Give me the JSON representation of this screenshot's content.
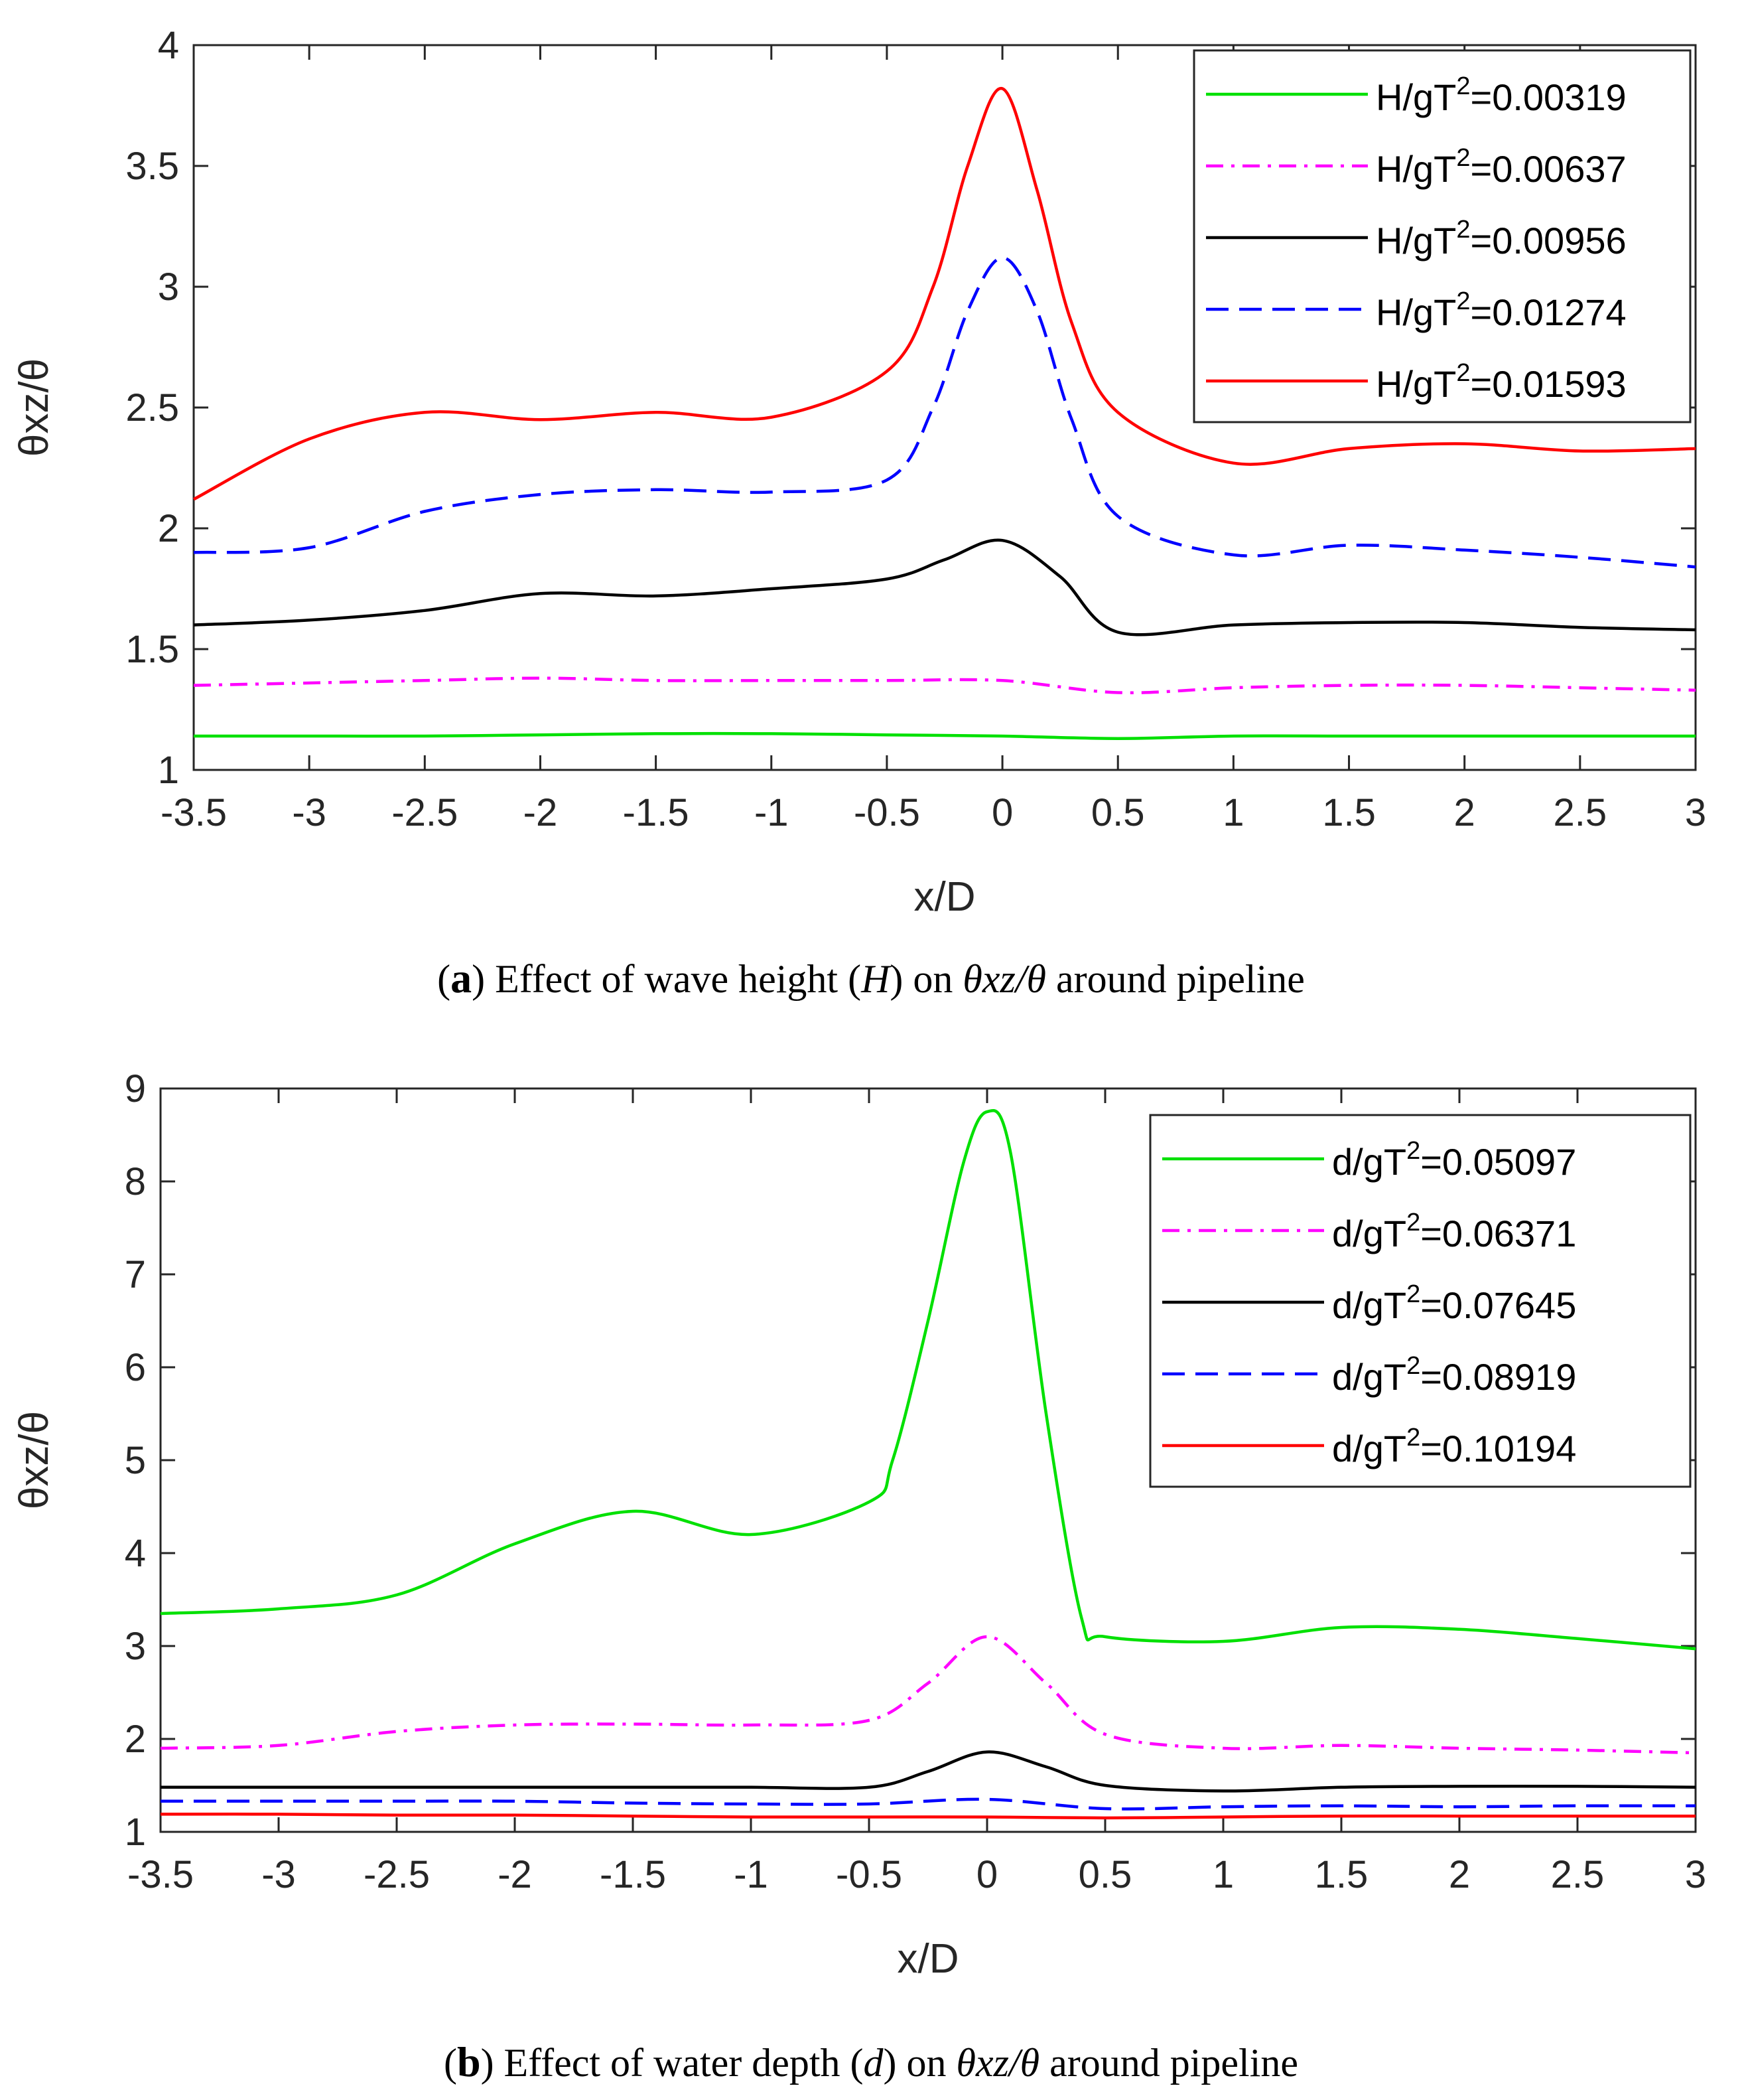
{
  "chart_data": [
    {
      "type": "line",
      "panel": "a",
      "caption": {
        "label": "a",
        "prefix": "Effect of wave height (",
        "variable": "H",
        "middle": ") on ",
        "quantity": "θxz/θ",
        "suffix": " around pipeline"
      },
      "xlabel": "x/D",
      "ylabel": "θxz/θ",
      "xlim": [
        -3.5,
        3
      ],
      "ylim": [
        1,
        4
      ],
      "xticks": [
        "-3.5",
        "-3",
        "-2.5",
        "-2",
        "-1.5",
        "-1",
        "-0.5",
        "0",
        "0.5",
        "1",
        "1.5",
        "2",
        "2.5",
        "3"
      ],
      "yticks": [
        "1",
        "1.5",
        "2",
        "2.5",
        "3",
        "3.5",
        "4"
      ],
      "legend_position": "top-right",
      "series": [
        {
          "name": "H/gT²=0.00319",
          "label_base": "H/gT",
          "label_sup": "2",
          "label_value": "=0.00319",
          "color": "#00e000",
          "style": "solid",
          "x": [
            -3.5,
            -3,
            -2.5,
            -2,
            -1.5,
            -1,
            -0.5,
            0,
            0.5,
            1,
            1.5,
            2,
            2.5,
            3
          ],
          "y": [
            1.14,
            1.14,
            1.14,
            1.145,
            1.15,
            1.15,
            1.145,
            1.14,
            1.13,
            1.14,
            1.14,
            1.14,
            1.14,
            1.14
          ]
        },
        {
          "name": "H/gT²=0.00637",
          "label_base": "H/gT",
          "label_sup": "2",
          "label_value": "=0.00637",
          "color": "#ff00ff",
          "style": "dashdot",
          "x": [
            -3.5,
            -3,
            -2.5,
            -2,
            -1.5,
            -1,
            -0.5,
            0,
            0.5,
            1,
            1.5,
            2,
            2.5,
            3
          ],
          "y": [
            1.35,
            1.36,
            1.37,
            1.38,
            1.37,
            1.37,
            1.37,
            1.37,
            1.32,
            1.34,
            1.35,
            1.35,
            1.34,
            1.33
          ]
        },
        {
          "name": "H/gT²=0.00956",
          "label_base": "H/gT",
          "label_sup": "2",
          "label_value": "=0.00956",
          "color": "#000000",
          "style": "solid",
          "x": [
            -3.5,
            -3,
            -2.5,
            -2,
            -1.5,
            -1,
            -0.5,
            -0.25,
            0,
            0.25,
            0.5,
            1,
            1.5,
            2,
            2.5,
            3
          ],
          "y": [
            1.6,
            1.62,
            1.66,
            1.73,
            1.72,
            1.75,
            1.79,
            1.87,
            1.95,
            1.8,
            1.57,
            1.6,
            1.61,
            1.61,
            1.59,
            1.58
          ]
        },
        {
          "name": "H/gT²=0.01274",
          "label_base": "H/gT",
          "label_sup": "2",
          "label_value": "=0.01274",
          "color": "#0000ff",
          "style": "dashed",
          "x": [
            -3.5,
            -3,
            -2.5,
            -2,
            -1.5,
            -1,
            -0.5,
            -0.3,
            -0.15,
            0,
            0.15,
            0.3,
            0.5,
            1,
            1.5,
            2,
            2.5,
            3
          ],
          "y": [
            1.9,
            1.92,
            2.07,
            2.14,
            2.16,
            2.15,
            2.2,
            2.5,
            2.9,
            3.12,
            2.9,
            2.45,
            2.05,
            1.89,
            1.93,
            1.91,
            1.88,
            1.84
          ]
        },
        {
          "name": "H/gT²=0.01593",
          "label_base": "H/gT",
          "label_sup": "2",
          "label_value": "=0.01593",
          "color": "#ff0000",
          "style": "solid",
          "x": [
            -3.5,
            -3,
            -2.5,
            -2,
            -1.5,
            -1,
            -0.5,
            -0.3,
            -0.15,
            0,
            0.15,
            0.3,
            0.5,
            1,
            1.5,
            2,
            2.5,
            3
          ],
          "y": [
            2.12,
            2.37,
            2.48,
            2.45,
            2.48,
            2.46,
            2.65,
            3.0,
            3.5,
            3.82,
            3.4,
            2.85,
            2.48,
            2.27,
            2.33,
            2.35,
            2.32,
            2.33
          ]
        }
      ]
    },
    {
      "type": "line",
      "panel": "b",
      "caption": {
        "label": "b",
        "prefix": "Effect of water depth (",
        "variable": "d",
        "middle": ") on ",
        "quantity": "θxz/θ",
        "suffix": " around pipeline"
      },
      "xlabel": "x/D",
      "ylabel": "θxz/θ",
      "xlim": [
        -3.5,
        3
      ],
      "ylim": [
        1,
        9
      ],
      "xticks": [
        "-3.5",
        "-3",
        "-2.5",
        "-2",
        "-1.5",
        "-1",
        "-0.5",
        "0",
        "0.5",
        "1",
        "1.5",
        "2",
        "2.5",
        "3"
      ],
      "yticks": [
        "1",
        "2",
        "3",
        "4",
        "5",
        "6",
        "7",
        "8",
        "9"
      ],
      "legend_position": "top-right",
      "series": [
        {
          "name": "d/gT²=0.05097",
          "label_base": "d/gT",
          "label_sup": "2",
          "label_value": "=0.05097",
          "color": "#00e000",
          "style": "solid",
          "x": [
            -3.5,
            -3,
            -2.5,
            -2,
            -1.5,
            -1,
            -0.5,
            -0.4,
            -0.25,
            -0.1,
            0,
            0.1,
            0.25,
            0.4,
            0.5,
            1,
            1.5,
            2,
            2.5,
            3
          ],
          "y": [
            3.35,
            3.4,
            3.55,
            4.1,
            4.45,
            4.2,
            4.55,
            5.0,
            6.5,
            8.2,
            8.75,
            8.3,
            5.5,
            3.3,
            3.1,
            3.05,
            3.2,
            3.18,
            3.08,
            2.97
          ]
        },
        {
          "name": "d/gT²=0.06371",
          "label_base": "d/gT",
          "label_sup": "2",
          "label_value": "=0.06371",
          "color": "#ff00ff",
          "style": "dashdot",
          "x": [
            -3.5,
            -3,
            -2.5,
            -2,
            -1.5,
            -1,
            -0.5,
            -0.25,
            0,
            0.25,
            0.5,
            1,
            1.5,
            2,
            2.5,
            3
          ],
          "y": [
            1.9,
            1.93,
            2.08,
            2.15,
            2.16,
            2.15,
            2.2,
            2.6,
            3.1,
            2.6,
            2.05,
            1.9,
            1.93,
            1.9,
            1.88,
            1.85
          ]
        },
        {
          "name": "d/gT²=0.07645",
          "label_base": "d/gT",
          "label_sup": "2",
          "label_value": "=0.07645",
          "color": "#000000",
          "style": "solid",
          "x": [
            -3.5,
            -3,
            -2.5,
            -2,
            -1.5,
            -1,
            -0.5,
            -0.25,
            0,
            0.25,
            0.5,
            1,
            1.5,
            2,
            2.5,
            3
          ],
          "y": [
            1.48,
            1.48,
            1.48,
            1.48,
            1.48,
            1.48,
            1.48,
            1.65,
            1.86,
            1.7,
            1.5,
            1.44,
            1.48,
            1.49,
            1.49,
            1.48
          ]
        },
        {
          "name": "d/gT²=0.08919",
          "label_base": "d/gT",
          "label_sup": "2",
          "label_value": "=0.08919",
          "color": "#0000ff",
          "style": "dashed",
          "x": [
            -3.5,
            -3,
            -2.5,
            -2,
            -1.5,
            -1,
            -0.5,
            0,
            0.5,
            1,
            1.5,
            2,
            2.5,
            3
          ],
          "y": [
            1.33,
            1.33,
            1.33,
            1.33,
            1.31,
            1.3,
            1.3,
            1.35,
            1.25,
            1.27,
            1.28,
            1.27,
            1.28,
            1.28
          ]
        },
        {
          "name": "d/gT²=0.10194",
          "label_base": "d/gT",
          "label_sup": "2",
          "label_value": "=0.10194",
          "color": "#ff0000",
          "style": "solid",
          "x": [
            -3.5,
            -3,
            -2.5,
            -2,
            -1.5,
            -1,
            -0.5,
            0,
            0.5,
            1,
            1.5,
            2,
            2.5,
            3
          ],
          "y": [
            1.19,
            1.19,
            1.18,
            1.18,
            1.17,
            1.16,
            1.16,
            1.16,
            1.15,
            1.16,
            1.17,
            1.17,
            1.17,
            1.17
          ]
        }
      ]
    }
  ]
}
